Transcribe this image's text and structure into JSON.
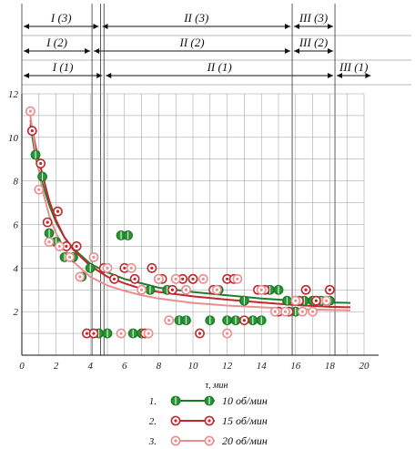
{
  "chart_data": {
    "type": "scatter",
    "title": "",
    "xlabel": "τ, мин",
    "ylabel": "",
    "xlim": [
      0,
      20
    ],
    "ylim": [
      0,
      12
    ],
    "x_ticks": [
      0,
      2,
      4,
      6,
      8,
      10,
      12,
      14,
      16,
      18,
      20
    ],
    "y_ticks": [
      2,
      4,
      6,
      8,
      10,
      12
    ],
    "grid": true,
    "legend_position": "bottom",
    "zone_rows": [
      {
        "row": "3",
        "segments": [
          {
            "label": "I (3)",
            "from": 0,
            "to": 4.6
          },
          {
            "label": "II (3)",
            "from": 4.6,
            "to": 15.8
          },
          {
            "label": "III (3)",
            "from": 15.8,
            "to": 18.3
          }
        ]
      },
      {
        "row": "2",
        "segments": [
          {
            "label": "I (2)",
            "from": 0,
            "to": 4.1
          },
          {
            "label": "II (2)",
            "from": 4.1,
            "to": 15.8
          },
          {
            "label": "III (2)",
            "from": 15.8,
            "to": 18.3
          }
        ]
      },
      {
        "row": "1",
        "segments": [
          {
            "label": "I (1)",
            "from": 0,
            "to": 4.8
          },
          {
            "label": "II (1)",
            "from": 4.8,
            "to": 18.3
          },
          {
            "label": "III (1)",
            "from": 18.3,
            "to": 20.5
          }
        ]
      }
    ],
    "series": [
      {
        "name": "10 об/мин",
        "number": "1.",
        "color": "#1e7d2a",
        "marker_fill": "#2a9a35",
        "curve": [
          [
            0.5,
            10.6
          ],
          [
            0.8,
            9.1
          ],
          [
            1.2,
            7.9
          ],
          [
            1.6,
            6.9
          ],
          [
            2,
            6.1
          ],
          [
            2.5,
            5.4
          ],
          [
            3,
            4.9
          ],
          [
            4,
            4.2
          ],
          [
            5,
            3.8
          ],
          [
            6,
            3.5
          ],
          [
            7,
            3.3
          ],
          [
            8,
            3.1
          ],
          [
            10,
            2.9
          ],
          [
            12,
            2.75
          ],
          [
            14,
            2.6
          ],
          [
            16,
            2.5
          ],
          [
            18,
            2.42
          ],
          [
            19.2,
            2.4
          ]
        ],
        "points": [
          [
            0.8,
            9.2
          ],
          [
            1.2,
            8.2
          ],
          [
            1.6,
            5.6
          ],
          [
            2,
            5.2
          ],
          [
            2.5,
            4.5
          ],
          [
            3,
            4.5
          ],
          [
            3.5,
            3.6
          ],
          [
            4,
            4.0
          ],
          [
            4.5,
            1.0
          ],
          [
            5,
            1.0
          ],
          [
            5.8,
            5.5
          ],
          [
            6.2,
            5.5
          ],
          [
            6.5,
            1.0
          ],
          [
            7,
            1.0
          ],
          [
            7.5,
            3.0
          ],
          [
            8,
            3.5
          ],
          [
            8.5,
            3.0
          ],
          [
            9.2,
            1.6
          ],
          [
            9.6,
            1.6
          ],
          [
            10,
            3.5
          ],
          [
            11,
            1.6
          ],
          [
            11.5,
            3.0
          ],
          [
            12,
            1.6
          ],
          [
            12.5,
            1.6
          ],
          [
            13,
            2.5
          ],
          [
            13.5,
            1.6
          ],
          [
            14,
            1.6
          ],
          [
            14.5,
            3.0
          ],
          [
            15,
            3.0
          ],
          [
            15.5,
            2.5
          ],
          [
            16,
            2.0
          ],
          [
            16.5,
            2.5
          ],
          [
            17,
            2.5
          ],
          [
            17.5,
            2.5
          ],
          [
            18,
            2.5
          ]
        ]
      },
      {
        "name": "15 об/мин",
        "number": "2.",
        "color": "#c0282e",
        "marker_fill": "#ffffff",
        "curve": [
          [
            0.5,
            10.8
          ],
          [
            0.8,
            9.6
          ],
          [
            1.2,
            8.3
          ],
          [
            1.6,
            7.1
          ],
          [
            2,
            6.2
          ],
          [
            2.5,
            5.4
          ],
          [
            3,
            4.85
          ],
          [
            4,
            4.1
          ],
          [
            5,
            3.6
          ],
          [
            6,
            3.3
          ],
          [
            7,
            3.05
          ],
          [
            8,
            2.9
          ],
          [
            10,
            2.7
          ],
          [
            12,
            2.55
          ],
          [
            14,
            2.42
          ],
          [
            16,
            2.3
          ],
          [
            18,
            2.22
          ],
          [
            19.2,
            2.2
          ]
        ],
        "points": [
          [
            0.6,
            10.3
          ],
          [
            1.1,
            8.8
          ],
          [
            1.5,
            6.1
          ],
          [
            2.1,
            6.6
          ],
          [
            2.6,
            5.0
          ],
          [
            3.2,
            5.0
          ],
          [
            3.8,
            1.0
          ],
          [
            4.2,
            1.0
          ],
          [
            4.8,
            4.0
          ],
          [
            5.4,
            3.5
          ],
          [
            6,
            4.0
          ],
          [
            6.6,
            3.5
          ],
          [
            7.2,
            1.0
          ],
          [
            7.6,
            4.0
          ],
          [
            8.2,
            3.5
          ],
          [
            8.8,
            3.0
          ],
          [
            9.4,
            3.5
          ],
          [
            10,
            3.5
          ],
          [
            10.4,
            1.0
          ],
          [
            11.2,
            3.0
          ],
          [
            12,
            3.5
          ],
          [
            12.4,
            3.5
          ],
          [
            13,
            1.6
          ],
          [
            13.8,
            3.0
          ],
          [
            14.2,
            3.0
          ],
          [
            15,
            2.0
          ],
          [
            15.6,
            2.0
          ],
          [
            16.2,
            2.5
          ],
          [
            16.6,
            3.0
          ],
          [
            17.2,
            2.5
          ],
          [
            18,
            3.0
          ]
        ]
      },
      {
        "name": "20 об/мин",
        "number": "3.",
        "color": "#e88e90",
        "marker_fill": "#ffffff",
        "curve": [
          [
            0.5,
            11.0
          ],
          [
            0.8,
            9.3
          ],
          [
            1.2,
            7.6
          ],
          [
            1.6,
            6.4
          ],
          [
            2,
            5.6
          ],
          [
            2.5,
            4.9
          ],
          [
            3,
            4.3
          ],
          [
            4,
            3.6
          ],
          [
            5,
            3.2
          ],
          [
            6,
            2.95
          ],
          [
            7,
            2.75
          ],
          [
            8,
            2.6
          ],
          [
            10,
            2.4
          ],
          [
            12,
            2.28
          ],
          [
            14,
            2.2
          ],
          [
            16,
            2.12
          ],
          [
            18,
            2.08
          ],
          [
            19.2,
            2.06
          ]
        ],
        "points": [
          [
            0.5,
            11.2
          ],
          [
            1,
            7.6
          ],
          [
            1.6,
            5.2
          ],
          [
            2.2,
            5.0
          ],
          [
            2.8,
            4.5
          ],
          [
            3.4,
            3.6
          ],
          [
            4.2,
            4.5
          ],
          [
            5,
            4.0
          ],
          [
            5.8,
            1.0
          ],
          [
            6.4,
            4.0
          ],
          [
            7,
            3.0
          ],
          [
            7.4,
            1.0
          ],
          [
            8,
            3.5
          ],
          [
            8.6,
            1.6
          ],
          [
            9,
            3.5
          ],
          [
            9.6,
            3.0
          ],
          [
            10.6,
            3.5
          ],
          [
            11.4,
            3.0
          ],
          [
            12,
            1.0
          ],
          [
            12.6,
            3.5
          ],
          [
            14,
            3.0
          ],
          [
            14.8,
            2.0
          ],
          [
            15.4,
            2.0
          ],
          [
            16,
            2.5
          ],
          [
            16.4,
            2.0
          ],
          [
            17,
            2.0
          ],
          [
            17.8,
            2.5
          ]
        ]
      }
    ]
  }
}
